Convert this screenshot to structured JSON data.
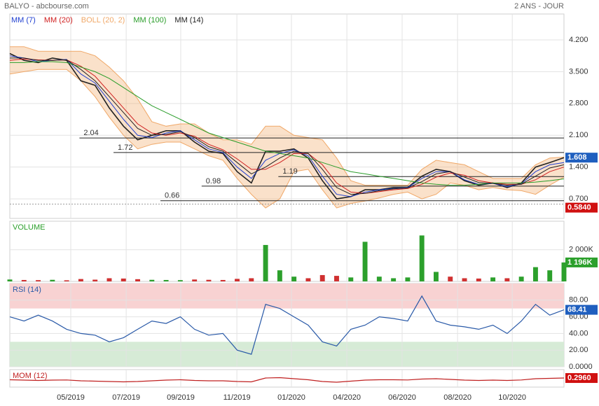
{
  "header": {
    "title": "BALYO - abcbourse.com",
    "period": "2 ANS - JOUR"
  },
  "chart_data": [
    {
      "type": "line",
      "color": "#222222",
      "grid": true,
      "xlim": [
        0,
        39
      ],
      "xticks": [
        {
          "value": 4.29,
          "label": "05/2019"
        },
        {
          "value": 8.19,
          "label": "07/2019"
        },
        {
          "value": 12.03,
          "label": "09/2019"
        },
        {
          "value": 15.98,
          "label": "11/2019"
        },
        {
          "value": 19.82,
          "label": "01/2020"
        },
        {
          "value": 23.72,
          "label": "04/2020"
        },
        {
          "value": 27.61,
          "label": "06/2020"
        },
        {
          "value": 31.51,
          "label": "08/2020"
        },
        {
          "value": 35.36,
          "label": "10/2020"
        }
      ],
      "ylim": [
        0.27,
        4.77
      ],
      "yticks": [
        {
          "value": 4.2,
          "label": "4.200"
        },
        {
          "value": 3.5,
          "label": "3.500"
        },
        {
          "value": 2.8,
          "label": "2.800"
        },
        {
          "value": 2.1,
          "label": "2.100"
        },
        {
          "value": 1.4,
          "label": "1.400"
        },
        {
          "value": 0.7,
          "label": "0.700"
        }
      ],
      "values": [
        3.9,
        3.75,
        3.7,
        3.8,
        3.75,
        3.3,
        3.2,
        2.7,
        2.3,
        2.0,
        2.1,
        2.2,
        2.2,
        1.95,
        1.75,
        1.7,
        1.3,
        1.05,
        1.75,
        1.75,
        1.8,
        1.6,
        1.1,
        0.7,
        0.75,
        0.9,
        0.9,
        0.95,
        0.95,
        1.2,
        1.35,
        1.3,
        1.1,
        1.0,
        1.05,
        0.95,
        1.05,
        1.4,
        1.5,
        1.608
      ],
      "series": [
        {
          "name": "MM (7)",
          "color": "#1f3fd0",
          "values": [
            3.85,
            3.8,
            3.72,
            3.75,
            3.77,
            3.45,
            3.25,
            2.85,
            2.45,
            2.1,
            2.05,
            2.15,
            2.2,
            2.0,
            1.8,
            1.72,
            1.4,
            1.15,
            1.55,
            1.7,
            1.78,
            1.65,
            1.2,
            0.8,
            0.75,
            0.85,
            0.9,
            0.93,
            0.95,
            1.15,
            1.3,
            1.3,
            1.12,
            1.02,
            1.04,
            0.97,
            1.03,
            1.3,
            1.45,
            1.5
          ]
        },
        {
          "name": "MM (20)",
          "color": "#d02020",
          "values": [
            3.75,
            3.78,
            3.76,
            3.75,
            3.76,
            3.62,
            3.4,
            3.05,
            2.7,
            2.35,
            2.15,
            2.1,
            2.15,
            2.08,
            1.9,
            1.78,
            1.58,
            1.35,
            1.35,
            1.5,
            1.7,
            1.7,
            1.45,
            1.05,
            0.85,
            0.82,
            0.86,
            0.9,
            0.93,
            1.02,
            1.18,
            1.27,
            1.22,
            1.1,
            1.05,
            1.02,
            1.02,
            1.12,
            1.3,
            1.4
          ]
        },
        {
          "name": "BOLL (20, 2)",
          "color": "#f0a868",
          "upper": [
            4.05,
            4.05,
            3.95,
            3.95,
            3.95,
            3.95,
            3.85,
            3.6,
            3.3,
            2.9,
            2.4,
            2.3,
            2.35,
            2.35,
            2.15,
            2.0,
            2.0,
            1.9,
            2.3,
            2.3,
            2.1,
            2.05,
            2.0,
            1.6,
            1.1,
            1.0,
            1.0,
            1.0,
            1.0,
            1.35,
            1.55,
            1.5,
            1.45,
            1.3,
            1.15,
            1.15,
            1.15,
            1.45,
            1.6,
            1.62
          ],
          "lower": [
            3.45,
            3.5,
            3.55,
            3.55,
            3.55,
            3.3,
            2.95,
            2.5,
            2.1,
            1.8,
            1.9,
            1.95,
            1.95,
            1.8,
            1.65,
            1.55,
            1.15,
            0.8,
            0.5,
            0.7,
            1.3,
            1.35,
            0.9,
            0.5,
            0.6,
            0.65,
            0.72,
            0.8,
            0.85,
            0.7,
            0.8,
            1.05,
            1.0,
            0.9,
            0.95,
            0.9,
            0.88,
            0.8,
            1.0,
            1.18
          ]
        },
        {
          "name": "MM (100)",
          "color": "#2a9d2a",
          "values": [
            3.7,
            3.7,
            3.72,
            3.72,
            3.7,
            3.6,
            3.5,
            3.35,
            3.15,
            2.95,
            2.75,
            2.6,
            2.45,
            2.3,
            2.15,
            2.05,
            1.95,
            1.85,
            1.75,
            1.7,
            1.65,
            1.6,
            1.5,
            1.4,
            1.3,
            1.25,
            1.2,
            1.15,
            1.1,
            1.05,
            1.02,
            1.0,
            1.0,
            1.02,
            1.05,
            1.05,
            1.05,
            1.07,
            1.1,
            1.14
          ]
        },
        {
          "name": "MM (14)",
          "color": "#222222",
          "values": [
            3.8,
            3.8,
            3.75,
            3.75,
            3.76,
            3.55,
            3.3,
            2.95,
            2.6,
            2.25,
            2.1,
            2.12,
            2.18,
            2.05,
            1.85,
            1.75,
            1.5,
            1.25,
            1.4,
            1.6,
            1.75,
            1.7,
            1.35,
            0.95,
            0.8,
            0.82,
            0.88,
            0.92,
            0.94,
            1.08,
            1.25,
            1.3,
            1.18,
            1.06,
            1.04,
            1.0,
            1.02,
            1.2,
            1.38,
            1.45
          ]
        }
      ],
      "levels": [
        {
          "value": 2.04,
          "x": 4.9
        },
        {
          "value": 1.72,
          "x": 7.3
        },
        {
          "value": 1.19,
          "x": 18.9
        },
        {
          "value": 0.98,
          "x": 13.5
        },
        {
          "value": 0.66,
          "x": 10.6
        }
      ],
      "low_marker": {
        "value": 0.584,
        "label": "0.5840"
      }
    },
    {
      "type": "bar",
      "title": "VOLUME",
      "up_color": "#2ca02c",
      "down_color": "#d03030",
      "ylim": [
        0,
        3800
      ],
      "yticks": [
        {
          "value": 2000,
          "label": "2 000K"
        }
      ],
      "values": [
        120,
        90,
        80,
        100,
        70,
        150,
        110,
        200,
        180,
        140,
        100,
        90,
        80,
        120,
        100,
        90,
        160,
        200,
        2300,
        700,
        300,
        200,
        400,
        350,
        250,
        2500,
        300,
        200,
        250,
        2900,
        600,
        300,
        200,
        180,
        250,
        200,
        300,
        900,
        700,
        1196
      ],
      "value_labels": [
        null,
        null,
        null,
        null,
        null,
        null,
        null,
        null,
        null,
        null,
        null,
        null,
        null,
        null,
        null,
        null,
        null,
        null,
        null,
        null,
        null,
        null,
        null,
        null,
        null,
        null,
        null,
        null,
        null,
        null,
        null,
        null,
        null,
        null,
        null,
        null,
        null,
        null,
        null,
        "1 196K"
      ]
    },
    {
      "type": "line",
      "title": "RSI (14)",
      "color": "#2a5aa8",
      "ylim": [
        0,
        100
      ],
      "yticks": [
        {
          "value": 80,
          "label": "80.00"
        },
        {
          "value": 60,
          "label": "60.00"
        },
        {
          "value": 40,
          "label": "40.00"
        },
        {
          "value": 20,
          "label": "20.00"
        },
        {
          "value": 0,
          "label": "0.0000"
        }
      ],
      "zones": [
        {
          "from": 70,
          "to": 100,
          "color": "#f8d2d2"
        },
        {
          "from": 0,
          "to": 30,
          "color": "#d6ebd6"
        }
      ],
      "values": [
        60,
        55,
        62,
        55,
        45,
        40,
        38,
        30,
        35,
        45,
        55,
        52,
        60,
        45,
        38,
        40,
        20,
        15,
        75,
        70,
        60,
        50,
        30,
        25,
        45,
        50,
        60,
        58,
        55,
        85,
        55,
        50,
        48,
        45,
        50,
        40,
        55,
        75,
        62,
        68.41
      ]
    },
    {
      "type": "line",
      "title": "MOM (12)",
      "color": "#c02020",
      "ylim": [
        -1,
        1.5
      ],
      "values": [
        0.05,
        0.0,
        -0.05,
        0.0,
        0.02,
        -0.1,
        -0.15,
        -0.2,
        -0.25,
        -0.2,
        -0.1,
        0.0,
        0.05,
        -0.05,
        -0.1,
        -0.1,
        -0.2,
        -0.25,
        0.3,
        0.35,
        0.2,
        0.05,
        -0.2,
        -0.3,
        -0.15,
        0.0,
        0.05,
        0.05,
        0.02,
        0.15,
        0.2,
        0.1,
        0.0,
        -0.05,
        0.0,
        -0.05,
        0.02,
        0.2,
        0.25,
        0.296
      ],
      "value_labels": [
        null,
        null,
        null,
        null,
        null,
        null,
        null,
        null,
        null,
        null,
        null,
        null,
        null,
        null,
        null,
        null,
        null,
        null,
        null,
        null,
        null,
        null,
        null,
        null,
        null,
        null,
        null,
        null,
        null,
        null,
        null,
        null,
        null,
        null,
        null,
        null,
        null,
        null,
        null,
        "0.2960"
      ]
    }
  ]
}
